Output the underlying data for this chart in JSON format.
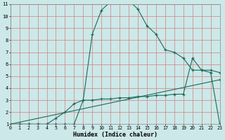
{
  "xlabel": "Humidex (Indice chaleur)",
  "bg_color": "#cce8e8",
  "grid_color": "#d08080",
  "line_color": "#1a6b5a",
  "xlim": [
    0,
    23
  ],
  "ylim": [
    1,
    11
  ],
  "xtick_vals": [
    0,
    1,
    2,
    3,
    4,
    5,
    6,
    7,
    8,
    9,
    10,
    11,
    12,
    13,
    14,
    15,
    16,
    17,
    18,
    19,
    20,
    21,
    22,
    23
  ],
  "ytick_vals": [
    1,
    2,
    3,
    4,
    5,
    6,
    7,
    8,
    9,
    10,
    11
  ],
  "series1_x": [
    0,
    1,
    2,
    3,
    4,
    5,
    6,
    7,
    8,
    9,
    10,
    11,
    12,
    13,
    14,
    15,
    16,
    17,
    18,
    19,
    20,
    21,
    22,
    23
  ],
  "series1_y": [
    1,
    1,
    1,
    1,
    1,
    1.5,
    2.0,
    2.7,
    3.0,
    8.5,
    10.5,
    11.2,
    11.25,
    11.3,
    10.6,
    9.2,
    8.5,
    7.2,
    7.0,
    6.5,
    5.5,
    5.5,
    5.3,
    1
  ],
  "series2_x": [
    0,
    1,
    2,
    3,
    4,
    5,
    6,
    7,
    8,
    9,
    10,
    11,
    12,
    13,
    14,
    15,
    16,
    17,
    18,
    19,
    20,
    21,
    22,
    23
  ],
  "series2_y": [
    1,
    1,
    1,
    1,
    1,
    1,
    1,
    1,
    3.0,
    3.0,
    3.1,
    3.1,
    3.2,
    3.2,
    3.3,
    3.3,
    3.4,
    3.4,
    3.5,
    3.5,
    6.5,
    5.5,
    5.5,
    5.3
  ],
  "series3_x": [
    0,
    23
  ],
  "series3_y": [
    1,
    4.7
  ]
}
